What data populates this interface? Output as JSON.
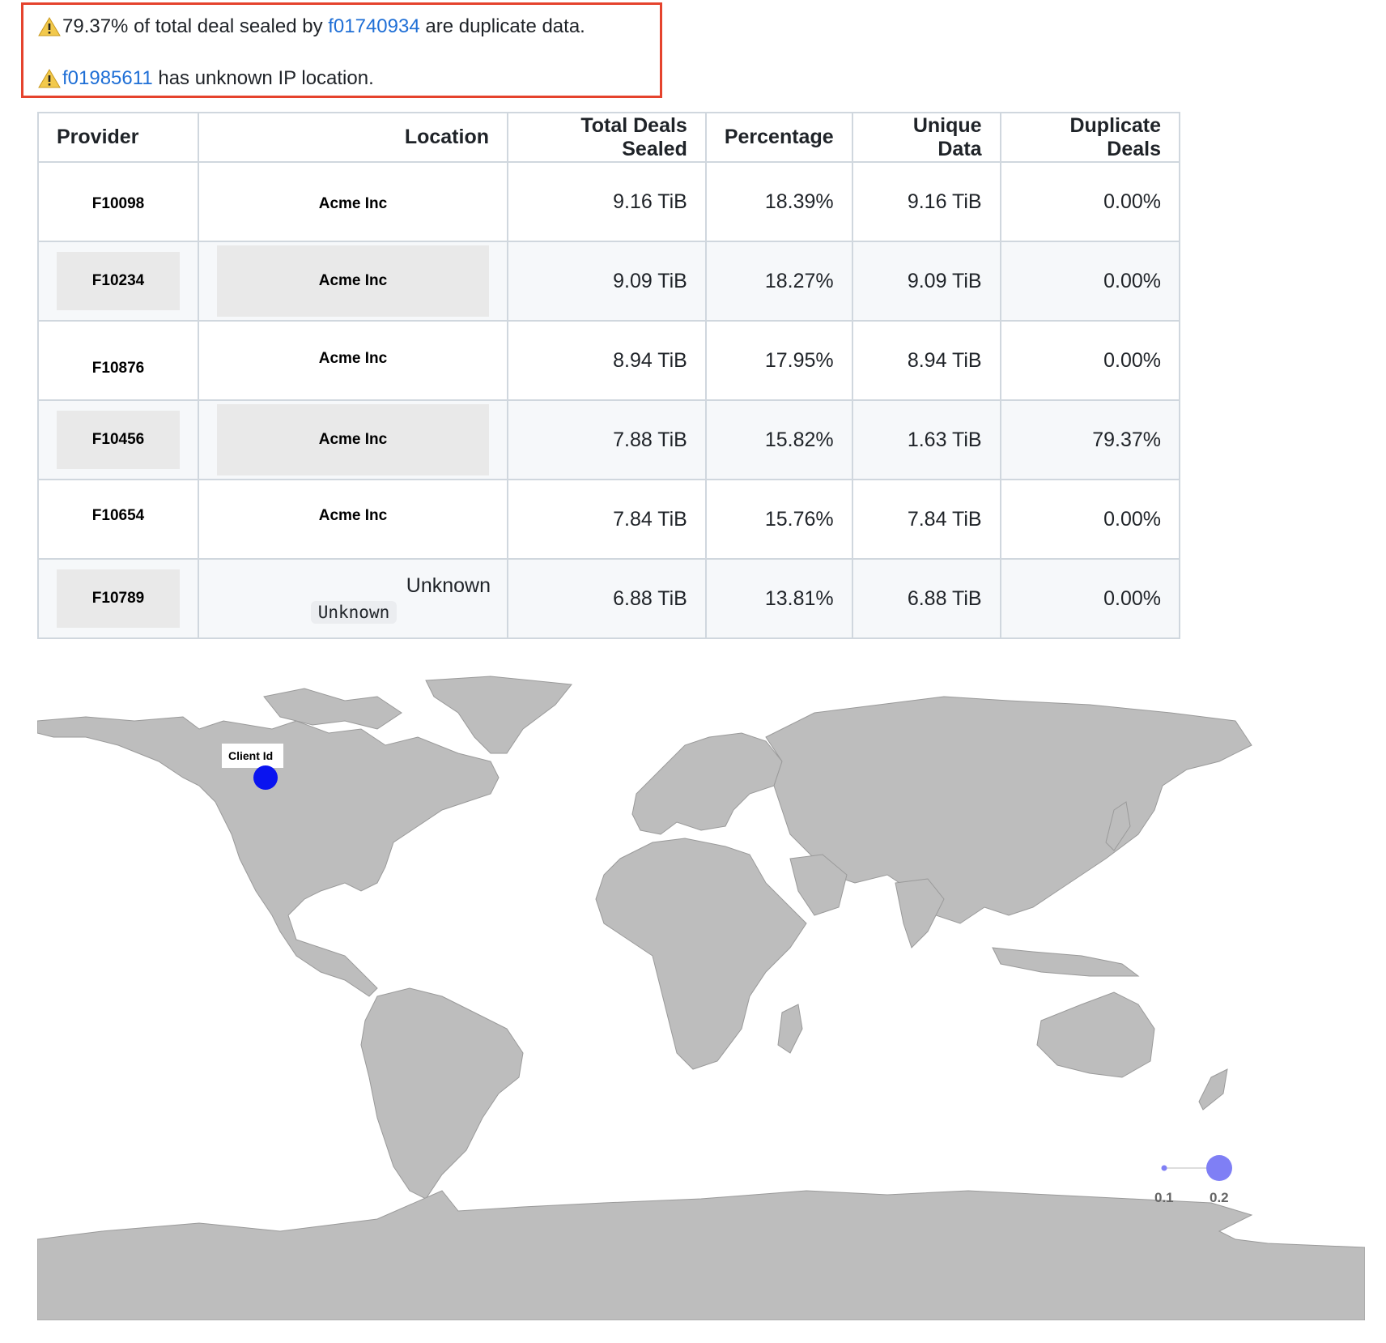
{
  "alerts": [
    {
      "prefix": "79.37% of total deal sealed by ",
      "link": "f01740934",
      "suffix": " are duplicate data."
    },
    {
      "prefix": "",
      "link": "f01985611",
      "suffix": " has unknown IP location."
    }
  ],
  "table": {
    "headers": [
      "Provider",
      "Location",
      "Total Deals Sealed",
      "Percentage",
      "Unique Data",
      "Duplicate Deals"
    ],
    "rows": [
      {
        "provider": "F10098",
        "location": "Acme Inc",
        "total": "9.16 TiB",
        "percentage": "18.39%",
        "unique": "9.16 TiB",
        "duplicate": "0.00%"
      },
      {
        "provider": "F10234",
        "location": "Acme Inc",
        "total": "9.09 TiB",
        "percentage": "18.27%",
        "unique": "9.09 TiB",
        "duplicate": "0.00%"
      },
      {
        "provider": "F10876",
        "location": "Acme Inc",
        "total": "8.94 TiB",
        "percentage": "17.95%",
        "unique": "8.94 TiB",
        "duplicate": "0.00%"
      },
      {
        "provider": "F10456",
        "location": "Acme Inc",
        "total": "7.88 TiB",
        "percentage": "15.82%",
        "unique": "1.63 TiB",
        "duplicate": "79.37%"
      },
      {
        "provider": "F10654",
        "location": "Acme Inc",
        "total": "7.84 TiB",
        "percentage": "15.76%",
        "unique": "7.84 TiB",
        "duplicate": "0.00%"
      },
      {
        "provider": "F10789",
        "location": "Unknown",
        "location_code": "Unknown",
        "total": "6.88 TiB",
        "percentage": "13.81%",
        "unique": "6.88 TiB",
        "duplicate": "0.00%"
      }
    ]
  },
  "map": {
    "marker_label": "Client Id",
    "marker_color": "#0a14f0",
    "land_color": "#bdbdbd",
    "size_legend": [
      "0.1",
      "0.2"
    ],
    "legend_color": "#7f7ff5"
  },
  "colors": {
    "alert_border": "#e5432d",
    "link": "#1f6fd6",
    "warning": "#f2c94c"
  }
}
